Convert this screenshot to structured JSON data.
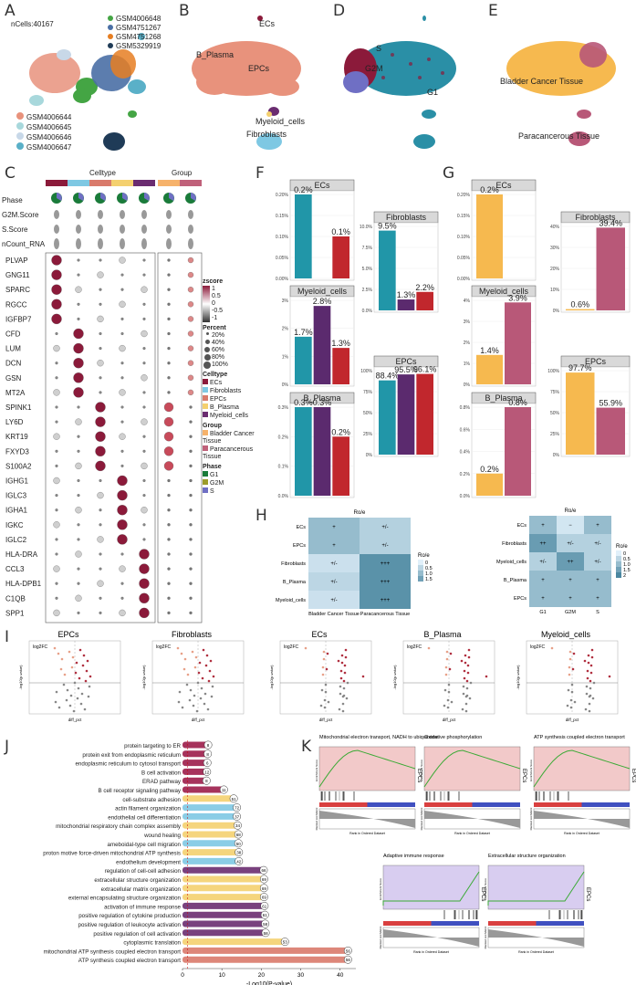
{
  "panel_letters": [
    "A",
    "B",
    "D",
    "E",
    "C",
    "F",
    "G",
    "H",
    "I",
    "J",
    "K"
  ],
  "A": {
    "ncells": "nCells:40167",
    "legend_top": [
      {
        "name": "GSM4006648",
        "color": "#44a544"
      },
      {
        "name": "GSM4751267",
        "color": "#4a6fa5"
      },
      {
        "name": "GSM4751268",
        "color": "#e67e22"
      },
      {
        "name": "GSM5329919",
        "color": "#1f3b57"
      }
    ],
    "legend_bottom": [
      {
        "name": "GSM4006644",
        "color": "#e8927c"
      },
      {
        "name": "GSM4006645",
        "color": "#a8d8dc"
      },
      {
        "name": "GSM4006646",
        "color": "#c8d8e8"
      },
      {
        "name": "GSM4006647",
        "color": "#5ab0c8"
      }
    ]
  },
  "B": {
    "labels": [
      "ECs",
      "B_Plasma",
      "EPCs",
      "Myeloid_cells",
      "Fibroblasts"
    ]
  },
  "D": {
    "labels": [
      "S",
      "G2M",
      "G1"
    ]
  },
  "E": {
    "labels": [
      "Bladder Cancer Tissue",
      "Paracancerous Tissue"
    ]
  },
  "C": {
    "header_celltype": "Celltype",
    "header_group": "Group",
    "row_labels_top": [
      "Phase",
      "G2M.Score",
      "S.Score",
      "nCount_RNA"
    ],
    "genes": [
      "PLVAP",
      "GNG11",
      "SPARC",
      "RGCC",
      "IGFBP7",
      "CFD",
      "LUM",
      "DCN",
      "GSN",
      "MT2A",
      "SPINK1",
      "LY6D",
      "KRT19",
      "FXYD3",
      "S100A2",
      "IGHG1",
      "IGLC3",
      "IGHA1",
      "IGKC",
      "IGLC2",
      "HLA-DRA",
      "CCL3",
      "HLA-DPB1",
      "C1QB",
      "SPP1"
    ],
    "legend": {
      "zscore_title": "zscore",
      "zscore_ticks": [
        "1",
        "0.5",
        "0",
        "-0.5",
        "-1"
      ],
      "percent_title": "Percent",
      "percent_ticks": [
        "20%",
        "40%",
        "60%",
        "80%",
        "100%"
      ],
      "celltype_title": "Celltype",
      "celltypes": [
        {
          "name": "ECs",
          "color": "#8b1a3a"
        },
        {
          "name": "Fibroblasts",
          "color": "#7ec8e3"
        },
        {
          "name": "EPCs",
          "color": "#d97a6b"
        },
        {
          "name": "B_Plasma",
          "color": "#f4d06f"
        },
        {
          "name": "Myeloid_cells",
          "color": "#6a2c70"
        }
      ],
      "group_title": "Group",
      "groups": [
        {
          "name": "Bladder Cancer Tissue",
          "color": "#f6b26b"
        },
        {
          "name": "Paracancerous Tissue",
          "color": "#c0617a"
        }
      ],
      "phase_title": "Phase",
      "phases": [
        {
          "name": "G1",
          "color": "#1a7b3a"
        },
        {
          "name": "G2M",
          "color": "#9c9c2a"
        },
        {
          "name": "S",
          "color": "#6f6fc4"
        }
      ]
    }
  },
  "F": {
    "colors": [
      "#2196a8",
      "#5b2a6e",
      "#c1272d"
    ],
    "facets": [
      {
        "title": "ECs",
        "labels": [
          "0.2%",
          "0.1%"
        ],
        "values": [
          0.2,
          0.1
        ],
        "ticks": [
          "0.20%",
          "0.15%",
          "0.10%",
          "0.05%",
          "0.00%"
        ]
      },
      {
        "title": "Fibroblasts",
        "labels": [
          "9.5%",
          "1.3%",
          "2.2%"
        ],
        "values": [
          9.5,
          1.3,
          2.2
        ],
        "ticks": [
          "10.0%",
          "7.5%",
          "5.0%",
          "2.5%",
          "0.0%"
        ]
      },
      {
        "title": "Myeloid_cells",
        "labels": [
          "1.7%",
          "2.8%",
          "1.3%"
        ],
        "values": [
          1.7,
          2.8,
          1.3
        ],
        "ticks": [
          "3%",
          "2%",
          "1%",
          "0%"
        ]
      },
      {
        "title": "EPCs",
        "labels": [
          "88.4%",
          "95.5%",
          "96.1%"
        ],
        "values": [
          88.4,
          95.5,
          96.1
        ],
        "ticks": [
          "100%",
          "75%",
          "50%",
          "25%",
          "0%"
        ]
      },
      {
        "title": "B_Plasma",
        "labels": [
          "0.3%",
          "0.3%",
          "0.2%"
        ],
        "values": [
          0.3,
          0.3,
          0.2
        ],
        "ticks": [
          "0.3%",
          "0.2%",
          "0.1%",
          "0.0%"
        ]
      }
    ]
  },
  "G": {
    "colors": [
      "#f6b94f",
      "#b85878"
    ],
    "facets": [
      {
        "title": "ECs",
        "labels": [
          "0.2%"
        ],
        "values": [
          0.2
        ],
        "ticks": [
          "0.20%",
          "0.15%",
          "0.10%",
          "0.05%",
          "0.00%"
        ]
      },
      {
        "title": "Fibroblasts",
        "labels": [
          "0.6%",
          "39.4%"
        ],
        "values": [
          0.6,
          39.4
        ],
        "ticks": [
          "40%",
          "30%",
          "20%",
          "10%",
          "0%"
        ]
      },
      {
        "title": "Myeloid_cells",
        "labels": [
          "1.4%",
          "3.9%"
        ],
        "values": [
          1.4,
          3.9
        ],
        "ticks": [
          "4%",
          "3%",
          "2%",
          "1%",
          "0%"
        ]
      },
      {
        "title": "EPCs",
        "labels": [
          "97.7%",
          "55.9%"
        ],
        "values": [
          97.7,
          55.9
        ],
        "ticks": [
          "100%",
          "75%",
          "50%",
          "25%",
          "0%"
        ]
      },
      {
        "title": "B_Plasma",
        "labels": [
          "0.2%",
          "0.8%"
        ],
        "values": [
          0.2,
          0.8
        ],
        "ticks": [
          "0.8%",
          "0.6%",
          "0.4%",
          "0.2%",
          "0.0%"
        ]
      }
    ]
  },
  "H": {
    "title": "Ro/e",
    "left": {
      "rows": [
        "ECs",
        "EPCs",
        "Fibroblasts",
        "B_Plasma",
        "Myeloid_cells"
      ],
      "cols": [
        "Bladder Cancer Tissue",
        "Paracancerous Tissue"
      ],
      "cells": [
        [
          "+",
          "+/-"
        ],
        [
          "+",
          "+/-"
        ],
        [
          "+/-",
          "+++"
        ],
        [
          "+/-",
          "+++"
        ],
        [
          "+/-",
          "+++"
        ]
      ],
      "vals": [
        [
          1.0,
          0.6
        ],
        [
          1.0,
          0.6
        ],
        [
          0.3,
          1.8
        ],
        [
          0.5,
          1.8
        ],
        [
          0.3,
          1.8
        ]
      ],
      "legend_title": "Ro/e",
      "legend_ticks": [
        "0",
        "0.5",
        "1.0",
        "1.5"
      ]
    },
    "right": {
      "rows": [
        "ECs",
        "Fibroblasts",
        "Myeloid_cells",
        "B_Plasma",
        "EPCs"
      ],
      "cols": [
        "G1",
        "G2M",
        "S"
      ],
      "cells": [
        [
          "+",
          "−",
          "+"
        ],
        [
          "++",
          "+/-",
          "+/-"
        ],
        [
          "+/-",
          "++",
          "+/-"
        ],
        [
          "+",
          "+",
          "+"
        ],
        [
          "+",
          "+",
          "+"
        ]
      ],
      "vals": [
        [
          1.0,
          0.2,
          1.0
        ],
        [
          1.6,
          0.6,
          0.6
        ],
        [
          0.6,
          1.6,
          0.6
        ],
        [
          1.0,
          1.0,
          1.0
        ],
        [
          1.0,
          1.0,
          1.0
        ]
      ],
      "legend_title": "Ro/e",
      "legend_ticks": [
        "0",
        "0.5",
        "1.0",
        "1.5",
        "2"
      ]
    }
  },
  "I": {
    "titles": [
      "EPCs",
      "Fibroblasts",
      "ECs",
      "B_Plasma",
      "Myeloid_cells"
    ],
    "ylabel": "-log10(p-value)",
    "xlabel": "diff_pct",
    "legend_title": "log2FC"
  },
  "J": {
    "xlabel": "-Log10(P-value)",
    "xticks": [
      "0",
      "10",
      "20",
      "30",
      "40"
    ],
    "terms": [
      {
        "name": "protein targeting to ER",
        "value": 6.5,
        "count": "8",
        "color": "#9c1d4a"
      },
      {
        "name": "protein exit from endoplasmic reticulum",
        "value": 6.4,
        "count": "8",
        "color": "#9c1d4a"
      },
      {
        "name": "endoplasmic reticulum to cytosol transport",
        "value": 6.3,
        "count": "6",
        "color": "#9c1d4a"
      },
      {
        "name": "B cell activation",
        "value": 6.2,
        "count": "12",
        "color": "#9c1d4a"
      },
      {
        "name": "ERAD pathway",
        "value": 6.1,
        "count": "8",
        "color": "#9c1d4a"
      },
      {
        "name": "B cell receptor signaling pathway",
        "value": 10.5,
        "count": "11",
        "color": "#9c1d4a"
      },
      {
        "name": "cell-substrate adhesion",
        "value": 13,
        "count": "51",
        "color": "#f4d06f"
      },
      {
        "name": "actin filament organization",
        "value": 13.8,
        "count": "72",
        "color": "#7ec8e3"
      },
      {
        "name": "endothelial cell differentiation",
        "value": 13.8,
        "count": "37",
        "color": "#7ec8e3"
      },
      {
        "name": "mitochondrial respiratory chain complex assembly",
        "value": 14,
        "count": "34",
        "color": "#f4d06f"
      },
      {
        "name": "wound healing",
        "value": 14.2,
        "count": "68",
        "color": "#f4d06f"
      },
      {
        "name": "ameboidal-type cell migration",
        "value": 14.2,
        "count": "50",
        "color": "#7ec8e3"
      },
      {
        "name": "proton motive force-driven mitochondrial ATP synthesis",
        "value": 14.3,
        "count": "38",
        "color": "#f4d06f"
      },
      {
        "name": "endothelium development",
        "value": 14.3,
        "count": "42",
        "color": "#7ec8e3"
      },
      {
        "name": "regulation of cell-cell adhesion",
        "value": 20.6,
        "count": "66",
        "color": "#6a2c70"
      },
      {
        "name": "extracellular structure organization",
        "value": 20.7,
        "count": "69",
        "color": "#f4d06f"
      },
      {
        "name": "extracellular matrix organization",
        "value": 20.7,
        "count": "69",
        "color": "#f4d06f"
      },
      {
        "name": "external encapsulating structure organization",
        "value": 20.7,
        "count": "69",
        "color": "#f4d06f"
      },
      {
        "name": "activation of immune response",
        "value": 20.8,
        "count": "61",
        "color": "#6a2c70"
      },
      {
        "name": "positive regulation of cytokine production",
        "value": 20.9,
        "count": "61",
        "color": "#6a2c70"
      },
      {
        "name": "positive regulation of leukocyte activation",
        "value": 21,
        "count": "58",
        "color": "#6a2c70"
      },
      {
        "name": "positive regulation of cell activation",
        "value": 21.1,
        "count": "58",
        "color": "#6a2c70"
      },
      {
        "name": "cytoplasmic translation",
        "value": 26,
        "count": "53",
        "color": "#f4d06f"
      },
      {
        "name": "mitochondrial ATP synthesis coupled electron transport",
        "value": 42,
        "count": "56",
        "color": "#d97a6b"
      },
      {
        "name": "ATP synthesis coupled electron transport",
        "value": 42,
        "count": "56",
        "color": "#d97a6b"
      }
    ]
  },
  "K": {
    "plots": [
      {
        "title": "Mitochondrial electron transport, NADH to ubiquinone",
        "tag": "EPCs",
        "bg": "#f2c9c9",
        "curve": "#3aaa35"
      },
      {
        "title": "Oxidative phosphorylation",
        "tag": "EPCs",
        "bg": "#f2c9c9",
        "curve": "#3aaa35"
      },
      {
        "title": "ATP synthesis coupled electron transport",
        "tag": "EPCs",
        "bg": "#f2c9c9",
        "curve": "#3aaa35"
      },
      {
        "title": "Adaptive immune response",
        "tag": "EPCs",
        "bg": "#d8cdf0",
        "curve": "#3aaa35"
      },
      {
        "title": "Extracellular structure organization",
        "tag": "EPCs",
        "bg": "#d8cdf0",
        "curve": "#3aaa35"
      }
    ],
    "ylabel_top": "Enrichment Score",
    "ylabel_bottom": "Ranked List Metric",
    "xlabel": "Rank in Ordered Dataset"
  }
}
